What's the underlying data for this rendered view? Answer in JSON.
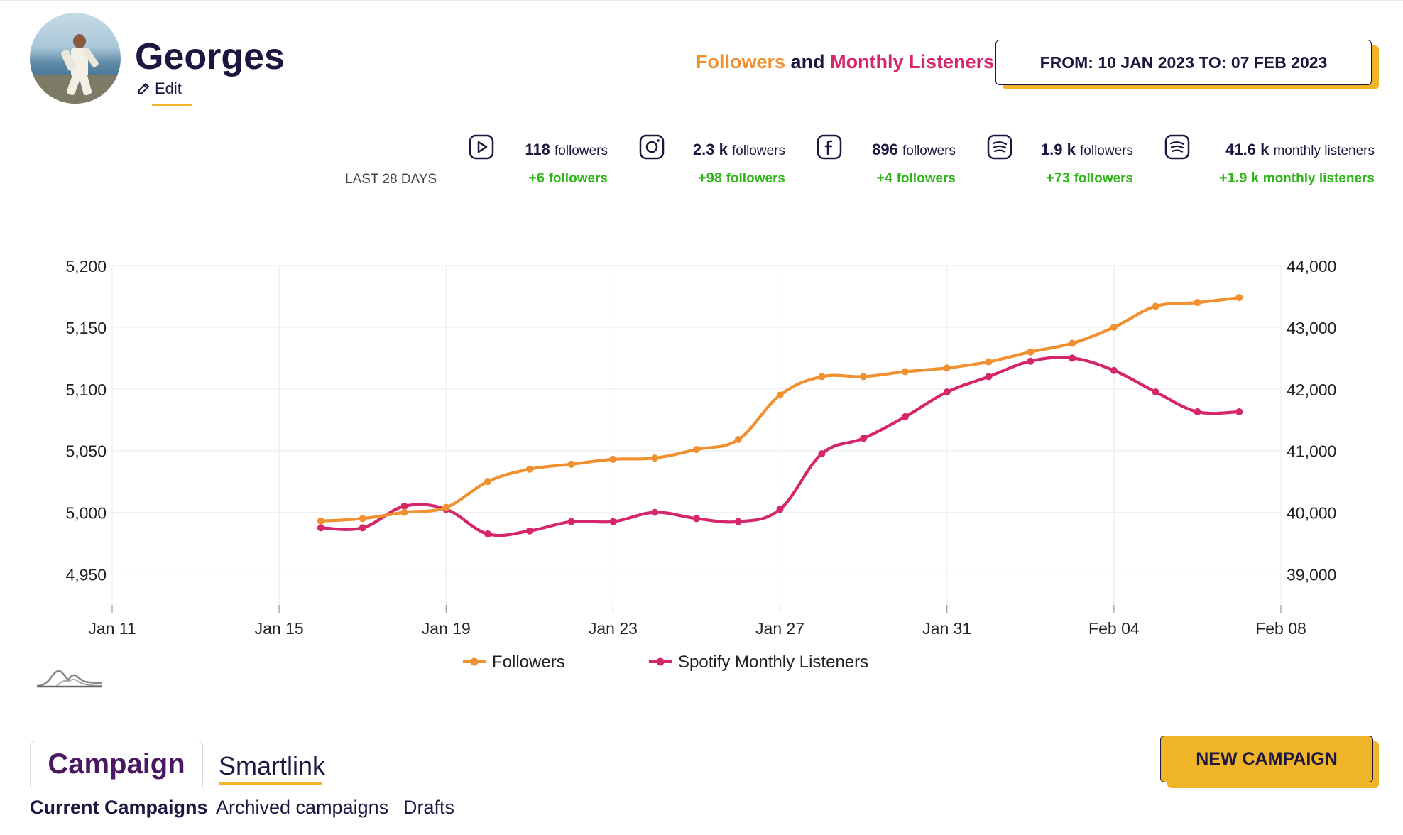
{
  "profile": {
    "name": "Georges",
    "edit_label": "Edit"
  },
  "header": {
    "legend_followers": "Followers",
    "legend_and": "and",
    "legend_listeners": "Monthly Listeners",
    "date_range": "FROM: 10 JAN 2023 TO: 07 FEB 2023"
  },
  "stats": {
    "period_label": "LAST 28 DAYS",
    "items": [
      {
        "icon": "youtube-icon",
        "value": "118",
        "value_suffix": "",
        "unit": "followers",
        "delta": "+6",
        "delta_suffix": "",
        "delta_unit": "followers"
      },
      {
        "icon": "instagram-icon",
        "value": "2.3",
        "value_suffix": "k",
        "unit": "followers",
        "delta": "+98",
        "delta_suffix": "",
        "delta_unit": "followers"
      },
      {
        "icon": "facebook-icon",
        "value": "896",
        "value_suffix": "",
        "unit": "followers",
        "delta": "+4",
        "delta_suffix": "",
        "delta_unit": "followers"
      },
      {
        "icon": "spotify-icon",
        "value": "1.9",
        "value_suffix": "k",
        "unit": "followers",
        "delta": "+73",
        "delta_suffix": "",
        "delta_unit": "followers"
      },
      {
        "icon": "spotify-icon",
        "value": "41.6",
        "value_suffix": "k",
        "unit": "monthly listeners",
        "delta": "+1.9",
        "delta_suffix": "k",
        "delta_unit": "monthly listeners"
      }
    ]
  },
  "chart_data": {
    "type": "line",
    "title": "",
    "x_ticks": [
      "Jan 11",
      "Jan 15",
      "Jan 19",
      "Jan 23",
      "Jan 27",
      "Jan 31",
      "Feb 04",
      "Feb 08"
    ],
    "x_range": [
      "2023-01-11",
      "2023-02-08"
    ],
    "y_left_ticks": [
      "4,950",
      "5,000",
      "5,050",
      "5,100",
      "5,150",
      "5,200"
    ],
    "y_left_range": [
      4925,
      5200
    ],
    "y_right_ticks": [
      "39,000",
      "40,000",
      "41,000",
      "42,000",
      "43,000",
      "44,000"
    ],
    "y_right_range": [
      38500,
      44000
    ],
    "grid": true,
    "legend_position": "bottom",
    "series": [
      {
        "name": "Followers",
        "axis": "left",
        "color": "#f0902e",
        "x": [
          "2023-01-16",
          "2023-01-17",
          "2023-01-18",
          "2023-01-19",
          "2023-01-20",
          "2023-01-21",
          "2023-01-22",
          "2023-01-23",
          "2023-01-24",
          "2023-01-25",
          "2023-01-26",
          "2023-01-27",
          "2023-01-28",
          "2023-01-29",
          "2023-01-30",
          "2023-01-31",
          "2023-02-01",
          "2023-02-02",
          "2023-02-03",
          "2023-02-04",
          "2023-02-05",
          "2023-02-06",
          "2023-02-07"
        ],
        "values": [
          4993,
          4995,
          5000,
          5004,
          5025,
          5035,
          5039,
          5043,
          5044,
          5051,
          5059,
          5095,
          5110,
          5110,
          5114,
          5117,
          5122,
          5130,
          5137,
          5150,
          5167,
          5170,
          5174
        ]
      },
      {
        "name": "Spotify Monthly Listeners",
        "axis": "right",
        "color": "#d6266a",
        "x": [
          "2023-01-16",
          "2023-01-17",
          "2023-01-18",
          "2023-01-19",
          "2023-01-20",
          "2023-01-21",
          "2023-01-22",
          "2023-01-23",
          "2023-01-24",
          "2023-01-25",
          "2023-01-26",
          "2023-01-27",
          "2023-01-28",
          "2023-01-29",
          "2023-01-30",
          "2023-01-31",
          "2023-02-01",
          "2023-02-02",
          "2023-02-03",
          "2023-02-04",
          "2023-02-05",
          "2023-02-06",
          "2023-02-07"
        ],
        "values": [
          39750,
          39750,
          40100,
          40050,
          39650,
          39700,
          39850,
          39850,
          40000,
          39900,
          39850,
          40050,
          40950,
          41200,
          41550,
          41950,
          42200,
          42450,
          42500,
          42300,
          41950,
          41630,
          41630
        ]
      }
    ]
  },
  "tabs": {
    "campaign": "Campaign",
    "smartlink": "Smartlink",
    "sub": [
      "Current Campaigns",
      "Archived campaigns",
      "Drafts"
    ],
    "new_campaign": "NEW CAMPAIGN"
  }
}
